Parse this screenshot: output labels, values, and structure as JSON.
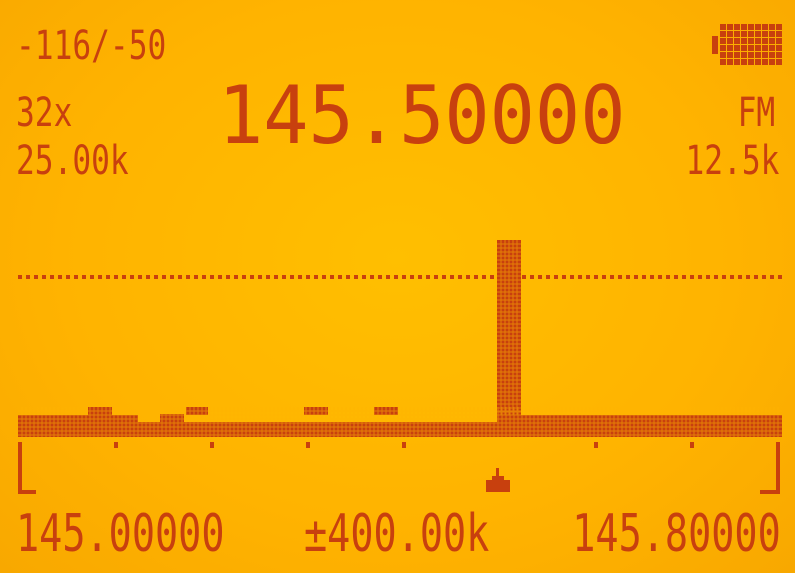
{
  "status": {
    "rssi": "-116/-50",
    "battery_level": 1.0
  },
  "info": {
    "zoom": "32x",
    "step": "25.00k",
    "frequency": "145.50000",
    "modulation": "FM",
    "bandwidth": "12.5k"
  },
  "scale": {
    "start": "145.00000",
    "span": "±400.00k",
    "end": "145.80000"
  },
  "colors": {
    "background": "#ffb400",
    "segment": "#c8400e"
  },
  "icons": {
    "battery": "battery-icon",
    "cursor": "tuning-marker-icon"
  }
}
